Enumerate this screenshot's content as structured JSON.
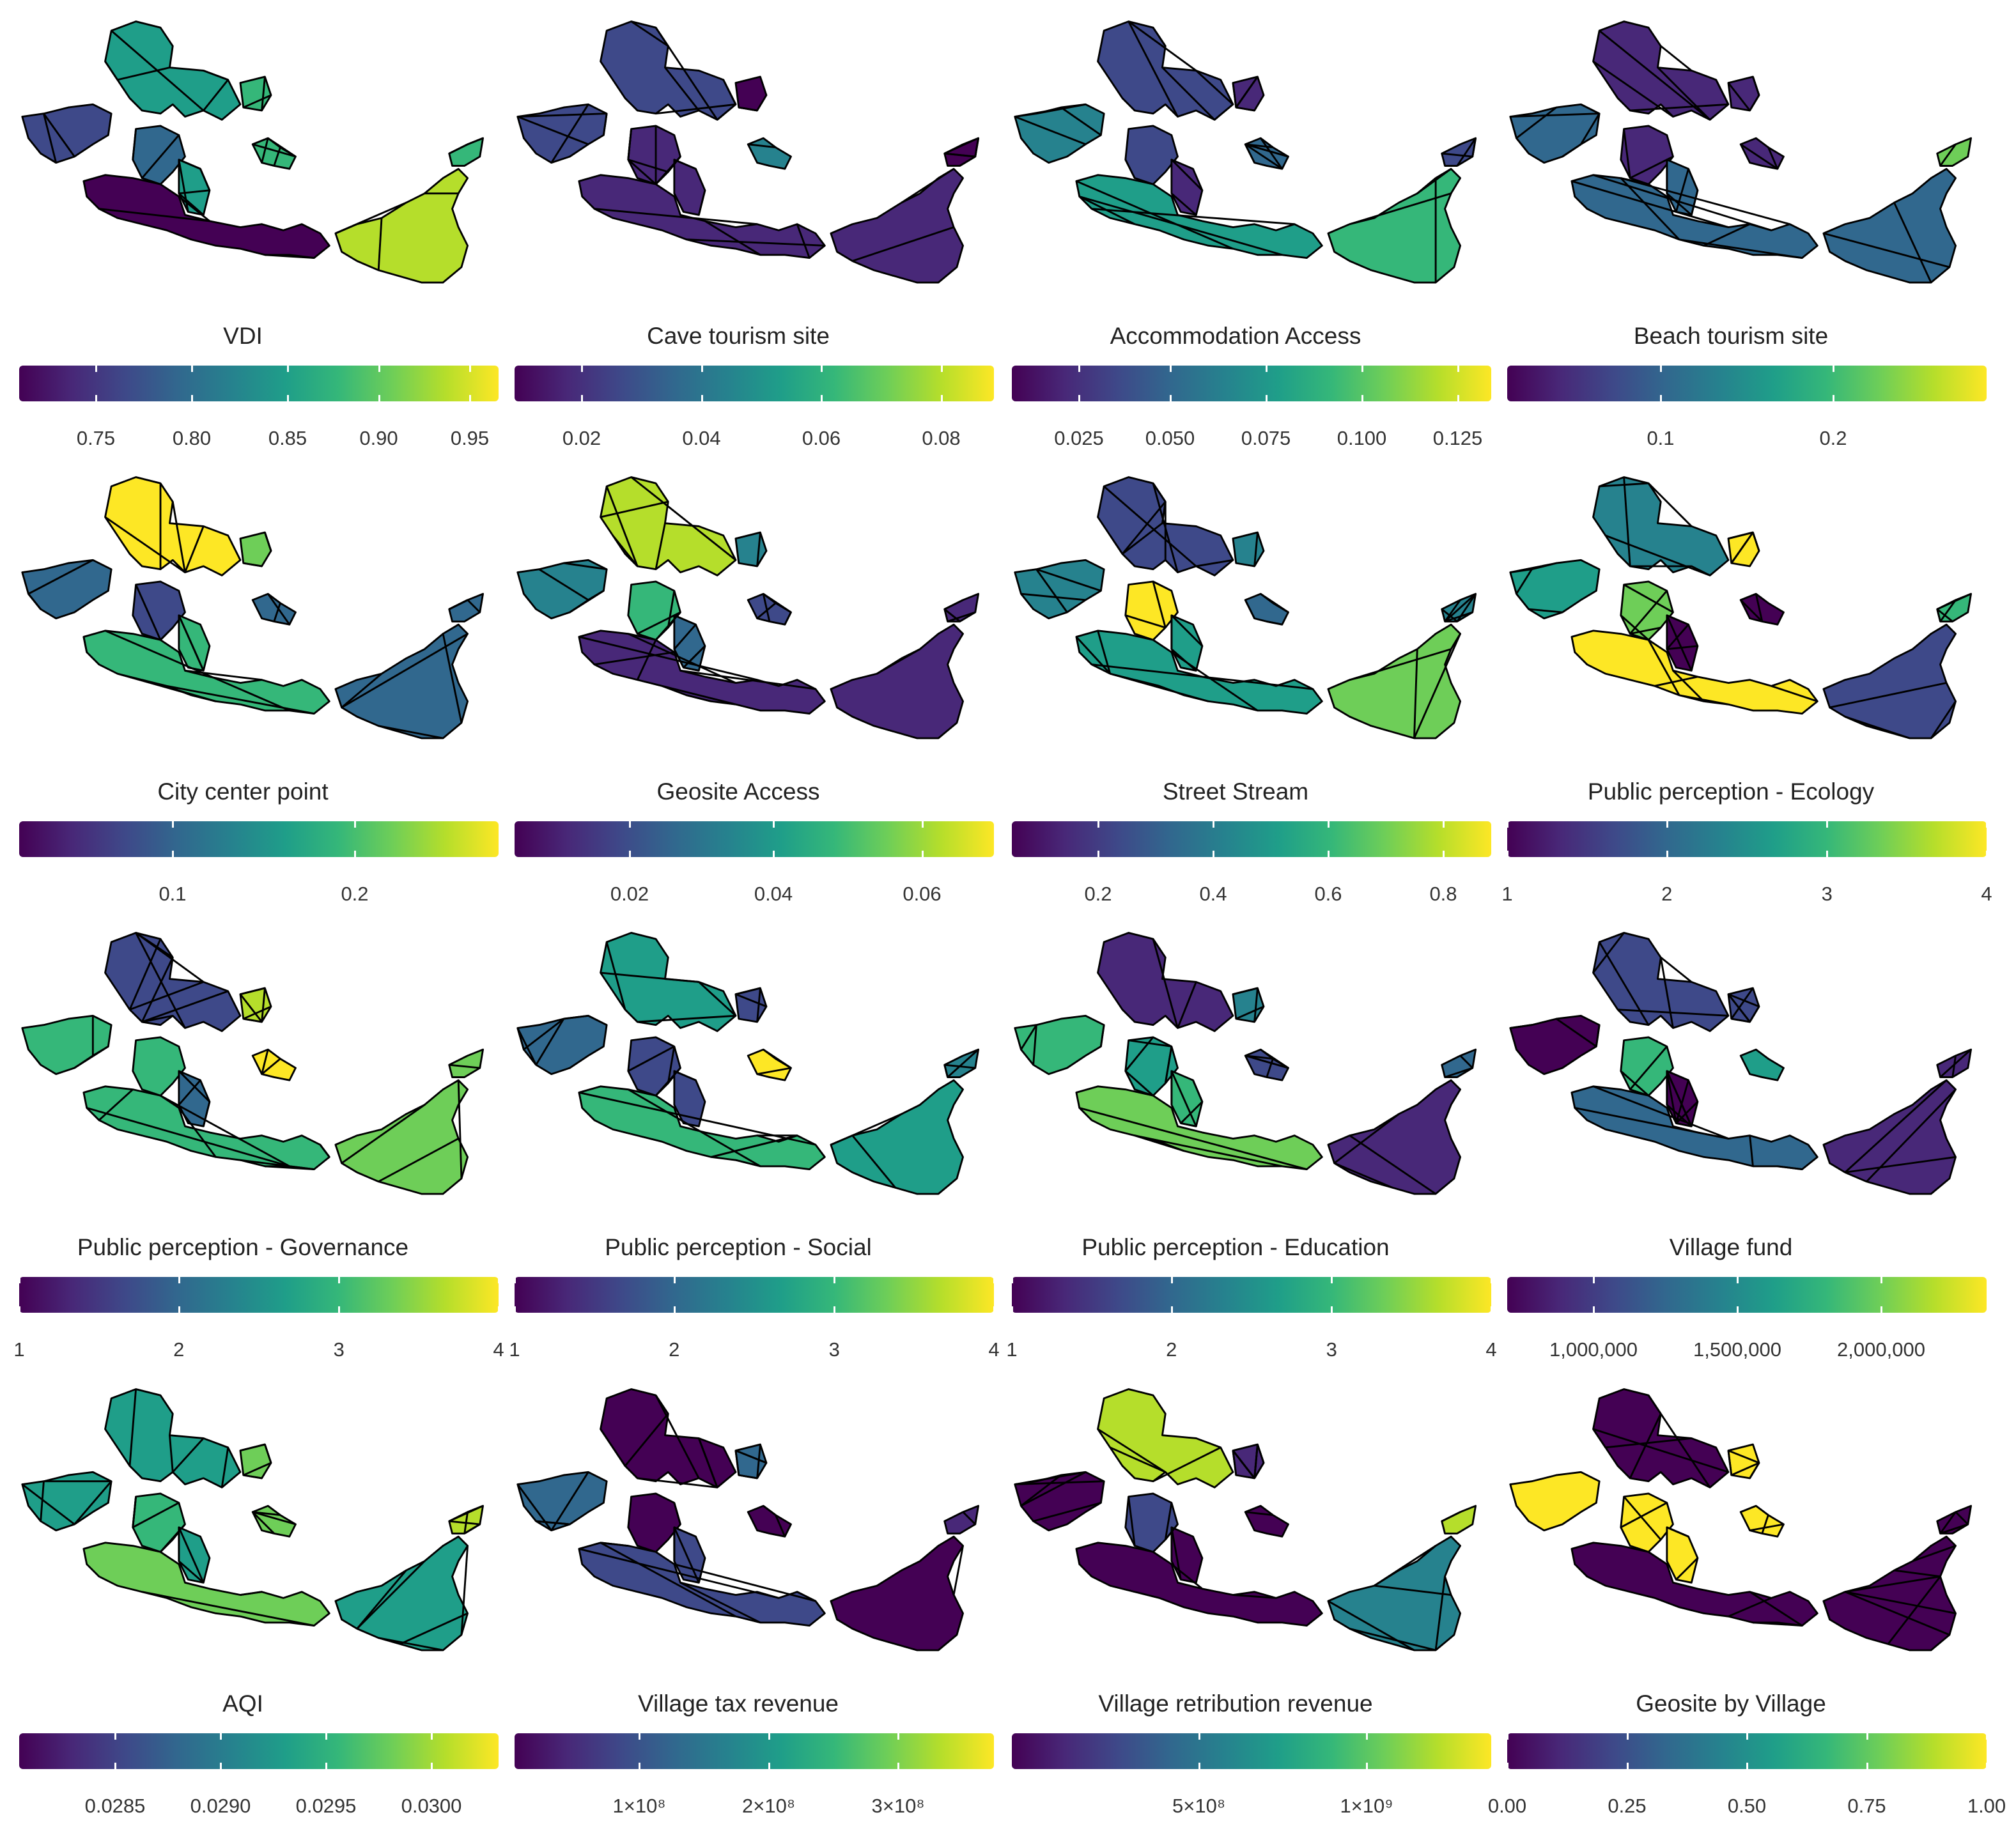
{
  "panels": [
    {
      "title": "VDI",
      "ticks": [
        "0.75",
        "0.80",
        "0.85",
        "0.90",
        "0.95"
      ],
      "tick_pos": [
        0.16,
        0.36,
        0.56,
        0.75,
        0.94
      ],
      "palette": "mixed-high"
    },
    {
      "title": "Cave tourism site",
      "ticks": [
        "0.02",
        "0.04",
        "0.06",
        "0.08"
      ],
      "tick_pos": [
        0.14,
        0.39,
        0.64,
        0.89
      ],
      "palette": "low"
    },
    {
      "title": "Accommodation Access",
      "ticks": [
        "0.025",
        "0.050",
        "0.075",
        "0.100",
        "0.125"
      ],
      "tick_pos": [
        0.14,
        0.33,
        0.53,
        0.73,
        0.93
      ],
      "palette": "low"
    },
    {
      "title": "Beach tourism site",
      "ticks": [
        "0.1",
        "0.2"
      ],
      "tick_pos": [
        0.32,
        0.68
      ],
      "palette": "low-mid"
    },
    {
      "title": "City center point",
      "ticks": [
        "0.1",
        "0.2"
      ],
      "tick_pos": [
        0.32,
        0.7
      ],
      "palette": "mid"
    },
    {
      "title": "Geosite Access",
      "ticks": [
        "0.02",
        "0.04",
        "0.06"
      ],
      "tick_pos": [
        0.24,
        0.54,
        0.85
      ],
      "palette": "low-mid"
    },
    {
      "title": "Street Stream",
      "ticks": [
        "0.2",
        "0.4",
        "0.6",
        "0.8"
      ],
      "tick_pos": [
        0.18,
        0.42,
        0.66,
        0.9
      ],
      "palette": "mid-high"
    },
    {
      "title": "Public perception - Ecology",
      "ticks": [
        "1",
        "2",
        "3",
        "4"
      ],
      "tick_pos": [
        0.0,
        0.333,
        0.667,
        1.0
      ],
      "palette": "mixed"
    },
    {
      "title": "Public perception - Governance",
      "ticks": [
        "1",
        "2",
        "3",
        "4"
      ],
      "tick_pos": [
        0.0,
        0.333,
        0.667,
        1.0
      ],
      "palette": "mixed-high"
    },
    {
      "title": "Public perception - Social",
      "ticks": [
        "1",
        "2",
        "3",
        "4"
      ],
      "tick_pos": [
        0.0,
        0.333,
        0.667,
        1.0
      ],
      "palette": "mid-high"
    },
    {
      "title": "Public perception - Education",
      "ticks": [
        "1",
        "2",
        "3",
        "4"
      ],
      "tick_pos": [
        0.0,
        0.333,
        0.667,
        1.0
      ],
      "palette": "mixed"
    },
    {
      "title": "Village fund",
      "ticks": [
        "1,000,000",
        "1,500,000",
        "2,000,000"
      ],
      "tick_pos": [
        0.18,
        0.48,
        0.78
      ],
      "palette": "low"
    },
    {
      "title": "AQI",
      "ticks": [
        "0.0285",
        "0.0290",
        "0.0295",
        "0.0300"
      ],
      "tick_pos": [
        0.2,
        0.42,
        0.64,
        0.86
      ],
      "palette": "mid-high"
    },
    {
      "title": "Village tax revenue",
      "ticks": [
        "1×10⁸",
        "2×10⁸",
        "3×10⁸"
      ],
      "tick_pos": [
        0.26,
        0.53,
        0.8
      ],
      "palette": "very-low"
    },
    {
      "title": "Village retribution revenue",
      "ticks": [
        "5×10⁸",
        "1×10⁹"
      ],
      "tick_pos": [
        0.39,
        0.74
      ],
      "palette": "very-low-mid"
    },
    {
      "title": "Geosite by Village",
      "ticks": [
        "0.00",
        "0.25",
        "0.50",
        "0.75",
        "1.00"
      ],
      "tick_pos": [
        0.0,
        0.25,
        0.5,
        0.75,
        1.0
      ],
      "palette": "binary"
    }
  ]
}
